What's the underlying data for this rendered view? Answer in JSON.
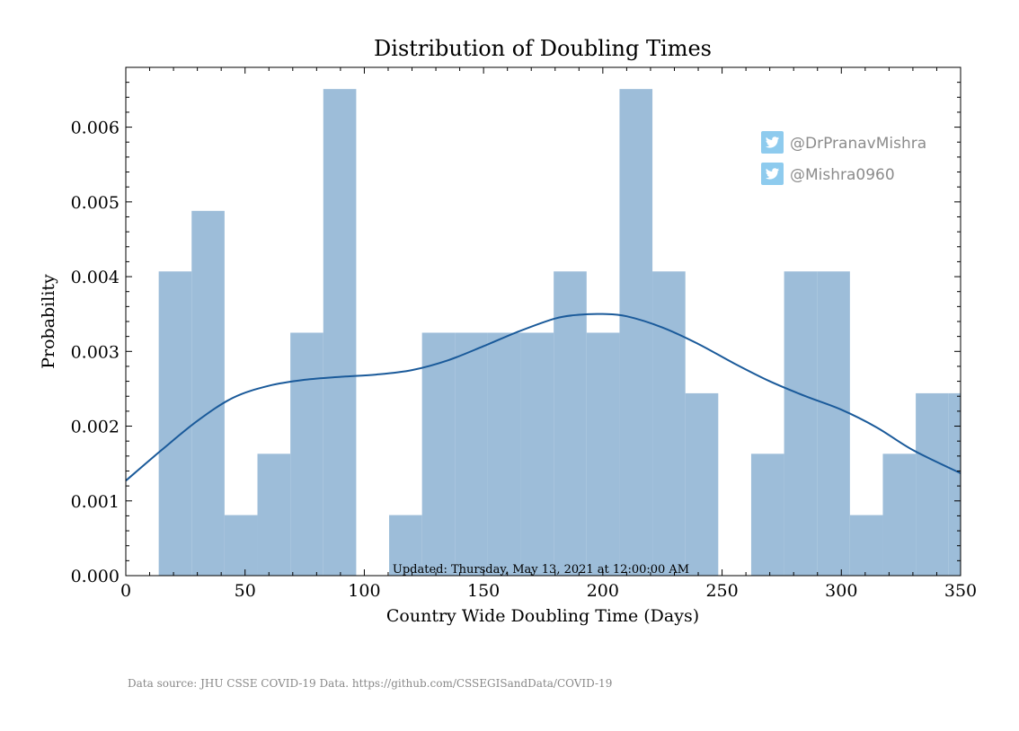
{
  "chart_data": {
    "type": "bar",
    "title": "Distribution of Doubling Times",
    "xlabel": "Country Wide Doubling Time (Days)",
    "ylabel": "Probability",
    "xlim": [
      0,
      350
    ],
    "ylim": [
      0,
      0.0068
    ],
    "x_ticks": [
      "0",
      "50",
      "100",
      "150",
      "200",
      "250",
      "300",
      "350"
    ],
    "y_ticks": [
      "0.000",
      "0.001",
      "0.002",
      "0.003",
      "0.004",
      "0.005",
      "0.006"
    ],
    "bin_edges": [
      13.8,
      27.6,
      41.4,
      55.2,
      69.0,
      82.8,
      96.6,
      110.4,
      124.2,
      138.0,
      151.8,
      165.6,
      179.4,
      193.2,
      207.0,
      220.8,
      234.6,
      248.4,
      262.2,
      276.0,
      289.8,
      303.6,
      317.4,
      331.2,
      345.0,
      358.8
    ],
    "values": [
      0.00407,
      0.00488,
      0.00081,
      0.00163,
      0.00325,
      0.00651,
      0,
      0.00081,
      0.00325,
      0.00325,
      0.00325,
      0.00325,
      0.00407,
      0.00325,
      0.00651,
      0.00407,
      0.00244,
      0,
      0.00163,
      0.00407,
      0.00407,
      0.00081,
      0.00163,
      0.00244,
      0.00244
    ],
    "kde": {
      "x": [
        0,
        15,
        30,
        45,
        60,
        75,
        90,
        105,
        120,
        135,
        150,
        165,
        180,
        190,
        200,
        210,
        225,
        240,
        255,
        270,
        285,
        300,
        315,
        330,
        350
      ],
      "y": [
        0.00127,
        0.00168,
        0.00207,
        0.00238,
        0.00254,
        0.00262,
        0.00266,
        0.00269,
        0.00275,
        0.00288,
        0.00307,
        0.00327,
        0.00344,
        0.00349,
        0.0035,
        0.00347,
        0.00332,
        0.0031,
        0.00284,
        0.0026,
        0.0024,
        0.00222,
        0.00198,
        0.00168,
        0.00137
      ]
    },
    "colors": {
      "bar": "#9dbdd9",
      "kde": "#1a5a9a"
    },
    "grid": false,
    "annotation": "Updated: Thursday, May 13, 2021 at 12:00:00 AM"
  },
  "social": [
    {
      "icon": "twitter-icon",
      "handle": "@DrPranavMishra"
    },
    {
      "icon": "twitter-icon",
      "handle": "@Mishra0960"
    }
  ],
  "footer": {
    "source": "Data source: JHU CSSE COVID-19 Data. https://github.com/CSSEGISandData/COVID-19"
  }
}
